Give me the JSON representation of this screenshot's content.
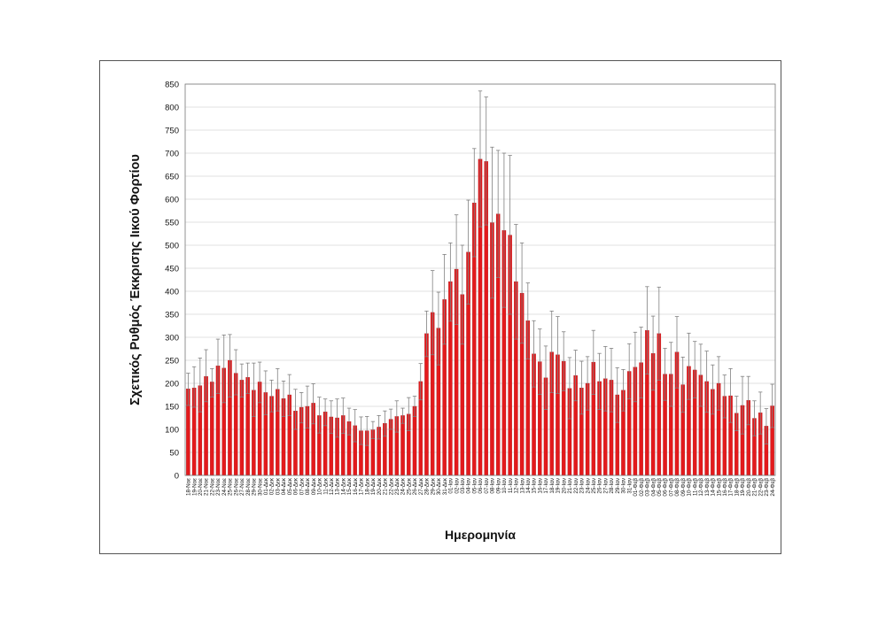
{
  "chart_data": {
    "type": "bar",
    "title": "",
    "xlabel": "Ημερομηνία",
    "ylabel": "Σχετικός Ρυθμός Έκκρισης Ιικού Φορτίου",
    "ylim": [
      0,
      850
    ],
    "yticks": [
      0,
      50,
      100,
      150,
      200,
      250,
      300,
      350,
      400,
      450,
      500,
      550,
      600,
      650,
      700,
      750,
      800,
      850
    ],
    "grid": true,
    "legend": "none",
    "colors": {
      "bar": "#e31a1c",
      "bar_edge": "#a50f15",
      "error_bar": "#808080",
      "grid": "#d9d9d9"
    },
    "categories": [
      "18-Νοε",
      "19-Νοε",
      "20-Νοε",
      "21-Νοε",
      "22-Νοε",
      "23-Νοε",
      "24-Νοε",
      "25-Νοε",
      "26-Νοε",
      "27-Νοε",
      "28-Νοε",
      "29-Νοε",
      "30-Νοε",
      "01-Δεκ",
      "02-Δεκ",
      "03-Δεκ",
      "04-Δεκ",
      "05-Δεκ",
      "06-Δεκ",
      "07-Δεκ",
      "08-Δεκ",
      "09-Δεκ",
      "10-Δεκ",
      "11-Δεκ",
      "12-Δεκ",
      "13-Δεκ",
      "14-Δεκ",
      "15-Δεκ",
      "16-Δεκ",
      "17-Δεκ",
      "18-Δεκ",
      "19-Δεκ",
      "20-Δεκ",
      "21-Δεκ",
      "22-Δεκ",
      "23-Δεκ",
      "24-Δεκ",
      "25-Δεκ",
      "26-Δεκ",
      "27-Δεκ",
      "28-Δεκ",
      "29-Δεκ",
      "30-Δεκ",
      "31-Δεκ",
      "01-Ιαν",
      "02-Ιαν",
      "03-Ιαν",
      "04-Ιαν",
      "05-Ιαν",
      "06-Ιαν",
      "07-Ιαν",
      "08-Ιαν",
      "09-Ιαν",
      "10-Ιαν",
      "11-Ιαν",
      "12-Ιαν",
      "13-Ιαν",
      "14-Ιαν",
      "15-Ιαν",
      "16-Ιαν",
      "17-Ιαν",
      "18-Ιαν",
      "19-Ιαν",
      "20-Ιαν",
      "21-Ιαν",
      "22-Ιαν",
      "23-Ιαν",
      "24-Ιαν",
      "25-Ιαν",
      "26-Ιαν",
      "27-Ιαν",
      "28-Ιαν",
      "29-Ιαν",
      "30-Ιαν",
      "31-Ιαν",
      "01-Φεβ",
      "02-Φεβ",
      "03-Φεβ",
      "04-Φεβ",
      "05-Φεβ",
      "06-Φεβ",
      "07-Φεβ",
      "08-Φεβ",
      "09-Φεβ",
      "10-Φεβ",
      "11-Φεβ",
      "12-Φεβ",
      "13-Φεβ",
      "14-Φεβ",
      "15-Φεβ",
      "16-Φεβ",
      "17-Φεβ",
      "18-Φεβ",
      "19-Φεβ",
      "20-Φεβ",
      "21-Φεβ",
      "22-Φεβ",
      "23-Φεβ",
      "24-Φεβ"
    ],
    "values": [
      188,
      190,
      195,
      215,
      203,
      238,
      233,
      250,
      222,
      207,
      213,
      185,
      203,
      180,
      172,
      187,
      167,
      175,
      140,
      148,
      150,
      157,
      130,
      138,
      127,
      125,
      130,
      117,
      108,
      97,
      97,
      99,
      105,
      113,
      122,
      128,
      130,
      133,
      150,
      204,
      308,
      354,
      320,
      382,
      421,
      448,
      393,
      485,
      592,
      687,
      682,
      549,
      568,
      532,
      522,
      421,
      396,
      336,
      264,
      247,
      212,
      268,
      262,
      248,
      189,
      217,
      190,
      200,
      246,
      204,
      210,
      207,
      175,
      185,
      226,
      235,
      245,
      315,
      265,
      308,
      220,
      220,
      268,
      197,
      237,
      229,
      218,
      204,
      187,
      200,
      172,
      173,
      135,
      152,
      163,
      124,
      136,
      107,
      151
    ],
    "error_upper": [
      222,
      236,
      255,
      273,
      232,
      296,
      305,
      306,
      273,
      242,
      244,
      244,
      246,
      227,
      207,
      232,
      205,
      219,
      187,
      180,
      194,
      199,
      170,
      166,
      162,
      166,
      168,
      146,
      143,
      127,
      128,
      117,
      130,
      140,
      144,
      162,
      146,
      169,
      172,
      243,
      357,
      445,
      398,
      480,
      505,
      566,
      500,
      598,
      710,
      835,
      822,
      713,
      706,
      700,
      695,
      545,
      505,
      418,
      336,
      318,
      281,
      357,
      345,
      312,
      256,
      272,
      248,
      258,
      315,
      265,
      280,
      276,
      234,
      230,
      286,
      311,
      322,
      410,
      346,
      409,
      276,
      289,
      345,
      257,
      309,
      291,
      285,
      270,
      240,
      258,
      218,
      232,
      172,
      215,
      215,
      162,
      181,
      145,
      198
    ],
    "error_lower": [
      152,
      148,
      138,
      160,
      170,
      178,
      158,
      170,
      175,
      170,
      178,
      128,
      158,
      132,
      138,
      140,
      128,
      130,
      100,
      114,
      103,
      112,
      92,
      108,
      91,
      83,
      91,
      88,
      73,
      67,
      65,
      80,
      79,
      85,
      100,
      94,
      113,
      97,
      128,
      164,
      258,
      262,
      240,
      285,
      335,
      328,
      285,
      372,
      475,
      540,
      544,
      385,
      430,
      365,
      350,
      296,
      287,
      253,
      192,
      176,
      143,
      180,
      178,
      184,
      123,
      162,
      133,
      142,
      176,
      143,
      140,
      138,
      115,
      140,
      166,
      160,
      168,
      220,
      185,
      207,
      163,
      150,
      190,
      137,
      165,
      168,
      150,
      137,
      133,
      142,
      125,
      115,
      97,
      90,
      110,
      86,
      90,
      68,
      104
    ]
  }
}
